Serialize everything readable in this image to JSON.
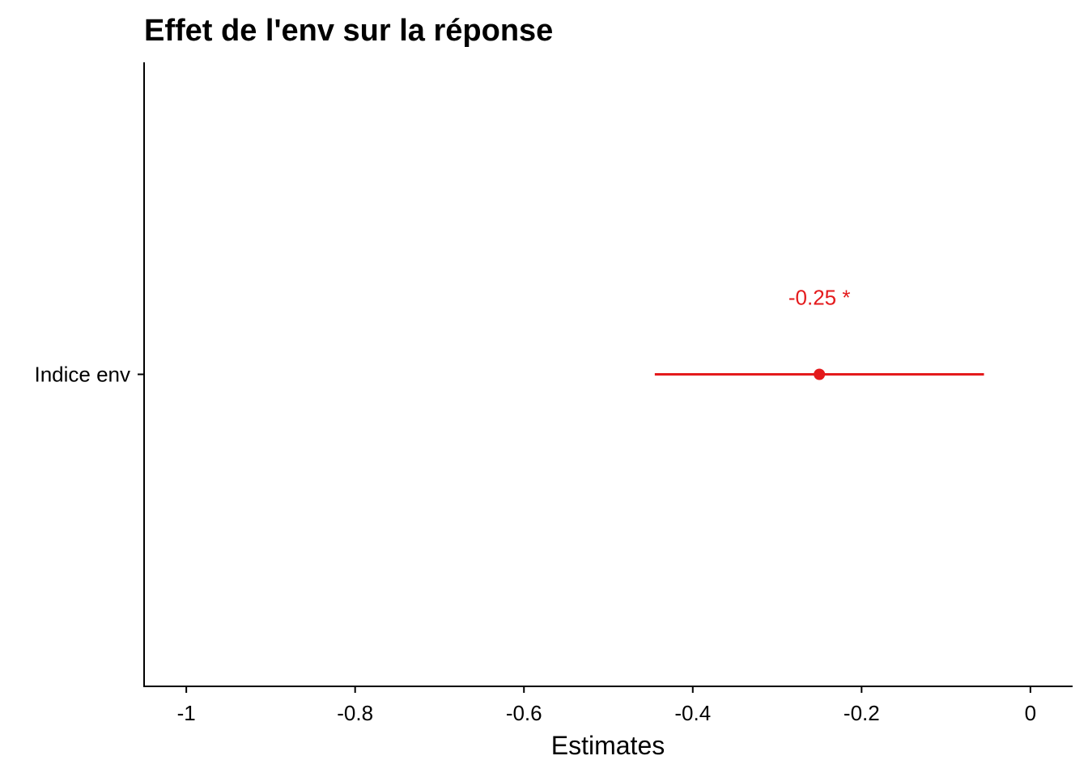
{
  "chart_data": {
    "type": "forest",
    "title": "Effet de l'env sur la réponse",
    "xlabel": "Estimates",
    "ylabel": "",
    "xlim": [
      -1.05,
      0.05
    ],
    "x_ticks": [
      -1,
      -0.8,
      -0.6,
      -0.4,
      -0.2,
      0
    ],
    "x_tick_labels": [
      "-1",
      "-0.8",
      "-0.6",
      "-0.4",
      "-0.2",
      "0"
    ],
    "terms": [
      "Indice env"
    ],
    "estimates": [
      -0.25
    ],
    "conf_low": [
      -0.445
    ],
    "conf_high": [
      -0.055
    ],
    "labels": [
      "-0.25 *"
    ],
    "grid": false,
    "legend": "none",
    "point_color": "#e41a1c"
  }
}
